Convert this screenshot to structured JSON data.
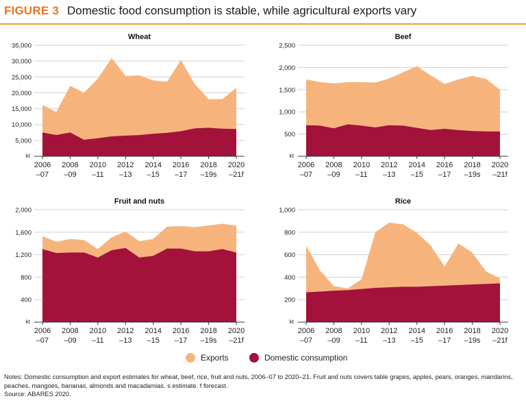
{
  "header": {
    "figure_label": "FIGURE 3",
    "title": "Domestic food consumption is stable, while agricultural exports vary"
  },
  "legend": {
    "exports": "Exports",
    "domestic": "Domestic consumption"
  },
  "notes": {
    "text": "Notes: Domestic consumption and export estimates for wheat, beef, rice, fruit and nuts, 2006–07 to 2020–21. Fruit and nuts covers table grapes, apples, pears, oranges, mandarins, peaches, mangoes, bananas, almonds and macadamias. s estimate. f forecast.",
    "source": "Source: ABARES 2020."
  },
  "colors": {
    "exports": "#f6b47c",
    "domestic": "#a3123a",
    "grid": "#cfcfcf",
    "accent": "#e8731f"
  },
  "chart_data": [
    {
      "type": "area",
      "title": "Wheat",
      "unit_label": "kt",
      "x_tick_labels": [
        [
          "2006",
          "–07"
        ],
        [
          "2008",
          "–09"
        ],
        [
          "2010",
          "–11"
        ],
        [
          "2012",
          "–13"
        ],
        [
          "2014",
          "–15"
        ],
        [
          "2016",
          "–17"
        ],
        [
          "2018",
          "–19s"
        ],
        [
          "2020",
          "–21f"
        ]
      ],
      "ylim": [
        0,
        35000
      ],
      "yticks": [
        5000,
        10000,
        15000,
        20000,
        25000,
        30000,
        35000
      ],
      "ytick_labels": [
        "5,000",
        "10,000",
        "15,000",
        "20,000",
        "25,000",
        "30,000",
        "35,000"
      ],
      "series": [
        {
          "name": "Domestic consumption",
          "values": [
            7500,
            6700,
            7500,
            5200,
            5700,
            6300,
            6500,
            6700,
            7100,
            7400,
            7900,
            8800,
            9000,
            8700,
            8600
          ]
        },
        {
          "name": "Exports",
          "values": [
            8700,
            7300,
            14700,
            14800,
            18800,
            24700,
            18800,
            18800,
            16800,
            16100,
            22400,
            14000,
            9000,
            9300,
            13000
          ]
        }
      ],
      "legend": "bottom",
      "grid": true
    },
    {
      "type": "area",
      "title": "Beef",
      "unit_label": "kt",
      "x_tick_labels": [
        [
          "2006",
          "–07"
        ],
        [
          "2008",
          "–09"
        ],
        [
          "2010",
          "–11"
        ],
        [
          "2012",
          "–13"
        ],
        [
          "2014",
          "–15"
        ],
        [
          "2016",
          "–17"
        ],
        [
          "2018",
          "–19s"
        ],
        [
          "2020",
          "–21f"
        ]
      ],
      "ylim": [
        0,
        2500
      ],
      "yticks": [
        500,
        1000,
        1500,
        2000,
        2500
      ],
      "ytick_labels": [
        "500",
        "1,000",
        "1,500",
        "2,000",
        "2,500"
      ],
      "series": [
        {
          "name": "Domestic consumption",
          "values": [
            700,
            690,
            630,
            720,
            690,
            650,
            700,
            690,
            640,
            590,
            620,
            590,
            570,
            560,
            560
          ]
        },
        {
          "name": "Exports",
          "values": [
            1030,
            980,
            1010,
            950,
            980,
            1010,
            1050,
            1200,
            1390,
            1230,
            1010,
            1140,
            1240,
            1180,
            940
          ]
        }
      ],
      "legend": "bottom",
      "grid": true
    },
    {
      "type": "area",
      "title": "Fruit and nuts",
      "unit_label": "kt",
      "x_tick_labels": [
        [
          "2006",
          "–07"
        ],
        [
          "2008",
          "–09"
        ],
        [
          "2010",
          "–11"
        ],
        [
          "2012",
          "–13"
        ],
        [
          "2014",
          "–15"
        ],
        [
          "2016",
          "–17"
        ],
        [
          "2018",
          "–19s"
        ],
        [
          "2020",
          "–21f"
        ]
      ],
      "ylim": [
        0,
        2000
      ],
      "yticks": [
        400,
        800,
        1200,
        1600,
        2000
      ],
      "ytick_labels": [
        "400",
        "800",
        "1,200",
        "1,600",
        "2,000"
      ],
      "series": [
        {
          "name": "Domestic consumption",
          "values": [
            1300,
            1230,
            1240,
            1240,
            1150,
            1280,
            1320,
            1150,
            1180,
            1310,
            1310,
            1260,
            1260,
            1300,
            1240
          ]
        },
        {
          "name": "Exports",
          "values": [
            230,
            200,
            240,
            220,
            150,
            230,
            290,
            290,
            300,
            390,
            400,
            430,
            460,
            450,
            480
          ]
        }
      ],
      "legend": "bottom",
      "grid": true
    },
    {
      "type": "area",
      "title": "Rice",
      "unit_label": "kt",
      "x_tick_labels": [
        [
          "2006",
          "–07"
        ],
        [
          "2008",
          "–09"
        ],
        [
          "2010",
          "–11"
        ],
        [
          "2012",
          "–13"
        ],
        [
          "2014",
          "–15"
        ],
        [
          "2016",
          "–17"
        ],
        [
          "2018",
          "–19s"
        ],
        [
          "2020",
          "–21f"
        ]
      ],
      "ylim": [
        0,
        1000
      ],
      "yticks": [
        200,
        400,
        600,
        800,
        1000
      ],
      "ytick_labels": [
        "200",
        "400",
        "600",
        "800",
        "1,000"
      ],
      "series": [
        {
          "name": "Domestic consumption",
          "values": [
            265,
            272,
            280,
            285,
            295,
            305,
            310,
            315,
            315,
            320,
            325,
            330,
            335,
            340,
            345
          ]
        },
        {
          "name": "Exports",
          "values": [
            415,
            188,
            40,
            15,
            85,
            495,
            575,
            555,
            480,
            360,
            170,
            370,
            285,
            110,
            45
          ]
        }
      ],
      "legend": "bottom",
      "grid": true
    }
  ]
}
